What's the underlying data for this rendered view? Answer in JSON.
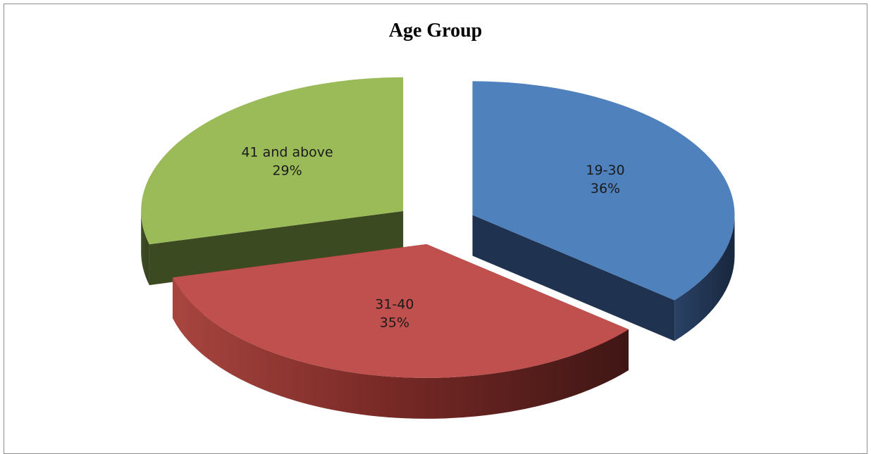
{
  "chart_data": {
    "type": "pie",
    "title": "Age Group",
    "style": "3d-exploded",
    "legend": "none",
    "slices": [
      {
        "label": "19-30",
        "value": 36,
        "value_label": "36%",
        "color": "#4f81bd",
        "side_color": "#1f3350"
      },
      {
        "label": "31-40",
        "value": 35,
        "value_label": "35%",
        "color": "#c0504d",
        "side_color": "#6e2220"
      },
      {
        "label": "41 and above",
        "value": 29,
        "value_label": "29%",
        "color": "#9bbb59",
        "side_color": "#3c4a22"
      }
    ]
  }
}
